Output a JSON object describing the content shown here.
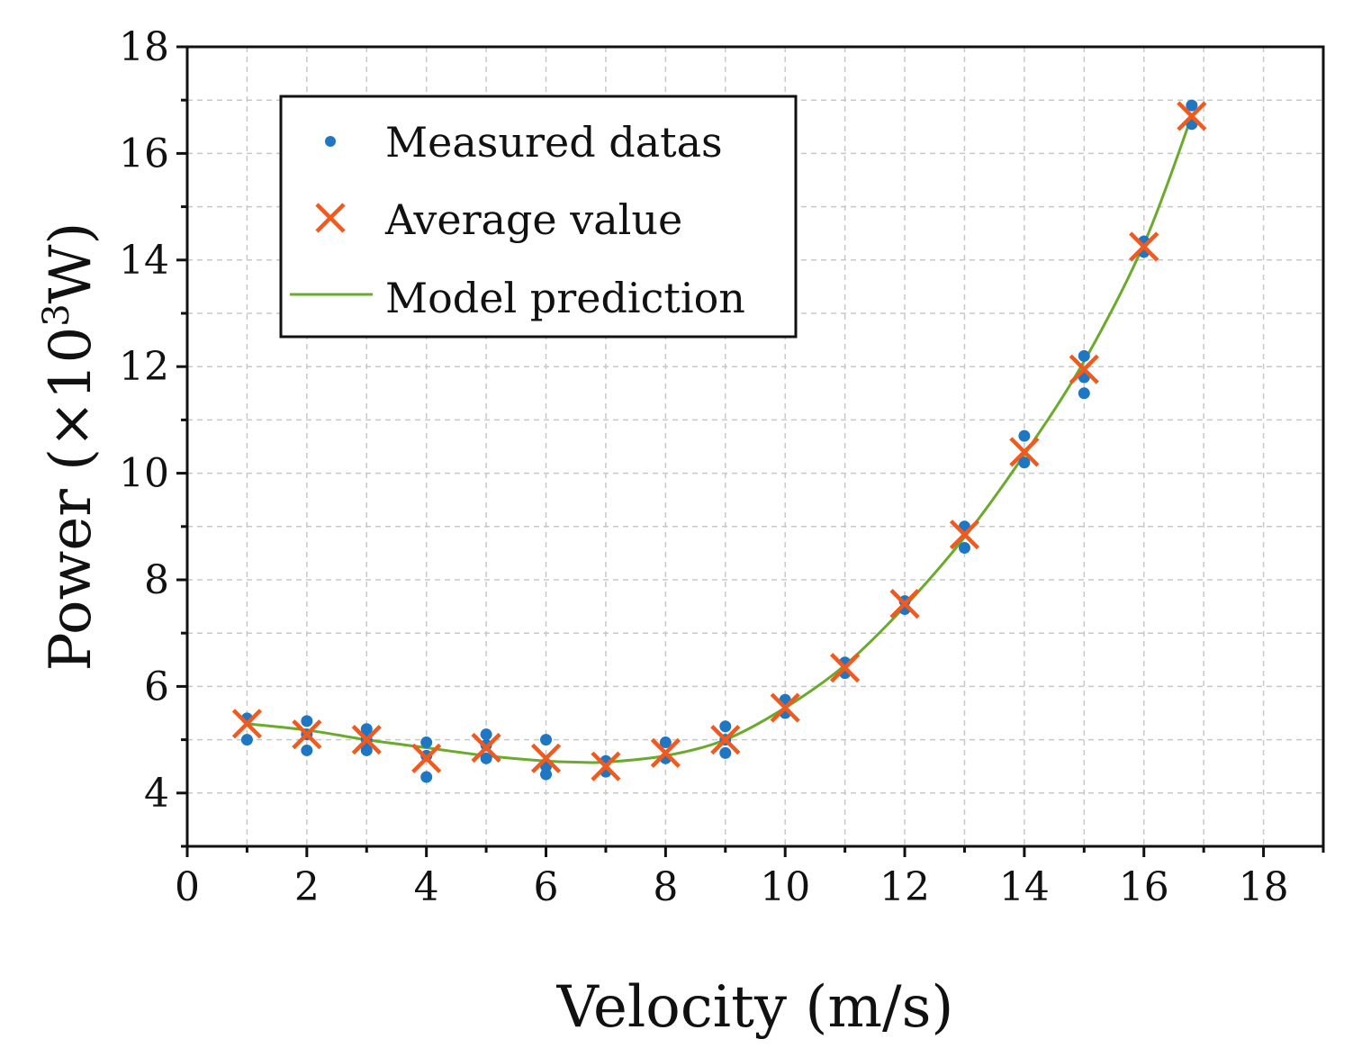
{
  "chart_data": {
    "type": "scatter",
    "title": "",
    "xlabel": "Velocity (m/s)",
    "ylabel_main": "Power (×10",
    "ylabel_sup": "3",
    "ylabel_unit": "W)",
    "xlim": [
      0,
      19
    ],
    "ylim": [
      3,
      18
    ],
    "xticks": [
      0,
      2,
      4,
      6,
      8,
      10,
      12,
      14,
      16,
      18
    ],
    "yticks": [
      4,
      6,
      8,
      10,
      12,
      14,
      16,
      18
    ],
    "grid": true,
    "legend_position": "top-left",
    "colors": {
      "measured": "#1f77c4",
      "average": "#f05a1e",
      "model": "#6aaa2c",
      "grid": "#c8c8c8",
      "axis": "#111111"
    },
    "series": [
      {
        "name": "Measured datas",
        "kind": "points",
        "x": [
          1,
          1,
          2,
          2,
          2,
          3,
          3,
          3,
          4,
          4,
          4,
          5,
          5,
          5,
          6,
          6,
          6,
          7,
          7,
          8,
          8,
          9,
          9,
          9,
          10,
          10,
          11,
          11,
          12,
          12,
          13,
          13,
          14,
          14,
          15,
          15,
          15,
          16,
          16,
          16.8,
          16.8
        ],
        "y": [
          5.4,
          5.0,
          5.35,
          4.8,
          5.1,
          5.2,
          4.8,
          5.0,
          4.95,
          4.3,
          4.7,
          5.1,
          4.65,
          4.9,
          5.0,
          4.35,
          4.5,
          4.6,
          4.4,
          4.95,
          4.65,
          5.25,
          4.75,
          5.0,
          5.75,
          5.5,
          6.45,
          6.25,
          7.6,
          7.45,
          9.0,
          8.6,
          10.7,
          10.2,
          12.2,
          11.8,
          11.5,
          14.35,
          14.15,
          16.9,
          16.55
        ]
      },
      {
        "name": "Average value",
        "kind": "x-markers",
        "x": [
          1,
          2,
          3,
          4,
          5,
          6,
          7,
          8,
          9,
          10,
          11,
          12,
          13,
          14,
          15,
          16,
          16.8
        ],
        "y": [
          5.3,
          5.1,
          5.0,
          4.65,
          4.85,
          4.65,
          4.5,
          4.75,
          5.0,
          5.6,
          6.35,
          7.55,
          8.85,
          10.4,
          11.95,
          14.25,
          16.7
        ]
      },
      {
        "name": "Model prediction",
        "kind": "line",
        "x": [
          1,
          2,
          3,
          4,
          5,
          6,
          6.5,
          7,
          8,
          9,
          10,
          11,
          12,
          13,
          14,
          15,
          16,
          16.8
        ],
        "y": [
          5.3,
          5.18,
          5.0,
          4.85,
          4.7,
          4.6,
          4.58,
          4.58,
          4.7,
          5.0,
          5.6,
          6.4,
          7.5,
          8.8,
          10.35,
          12.1,
          14.3,
          16.7
        ]
      }
    ]
  }
}
